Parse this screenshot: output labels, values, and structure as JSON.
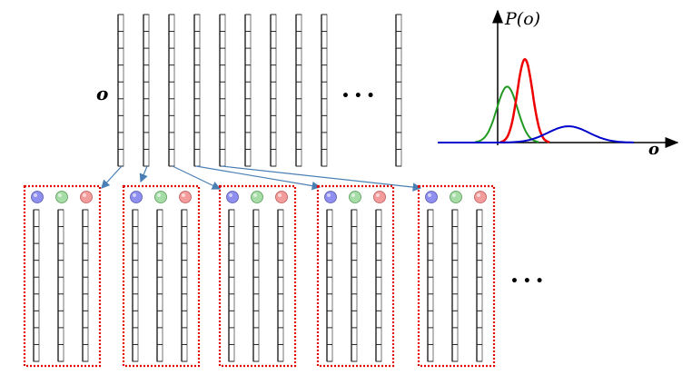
{
  "labels": {
    "obs_symbol": "o",
    "axis_x": "o",
    "axis_y": "P(o)",
    "ellipsis_top": "• • •",
    "ellipsis_bottom": "• • •"
  },
  "top_vectors": {
    "count": 11,
    "cells": 9
  },
  "groups": {
    "count": 5,
    "columns_per_group": 3,
    "cells": 9
  },
  "colors": {
    "component_blue": "#0000cc",
    "component_red": "#ee0000",
    "component_green": "#229922",
    "arrow": "#4a7fb5",
    "box_border": "#e00000",
    "ball_blue": "#8f8ff0",
    "ball_green": "#a6dca6",
    "ball_red": "#f39c9c"
  },
  "plot": {
    "components": [
      {
        "color": "green",
        "mean": 0.35,
        "sigma": 0.38,
        "height": 0.55
      },
      {
        "color": "red",
        "mean": 1.0,
        "sigma": 0.28,
        "height": 0.82
      },
      {
        "color": "blue",
        "mean": 2.6,
        "sigma": 0.75,
        "height": 0.16
      }
    ]
  }
}
